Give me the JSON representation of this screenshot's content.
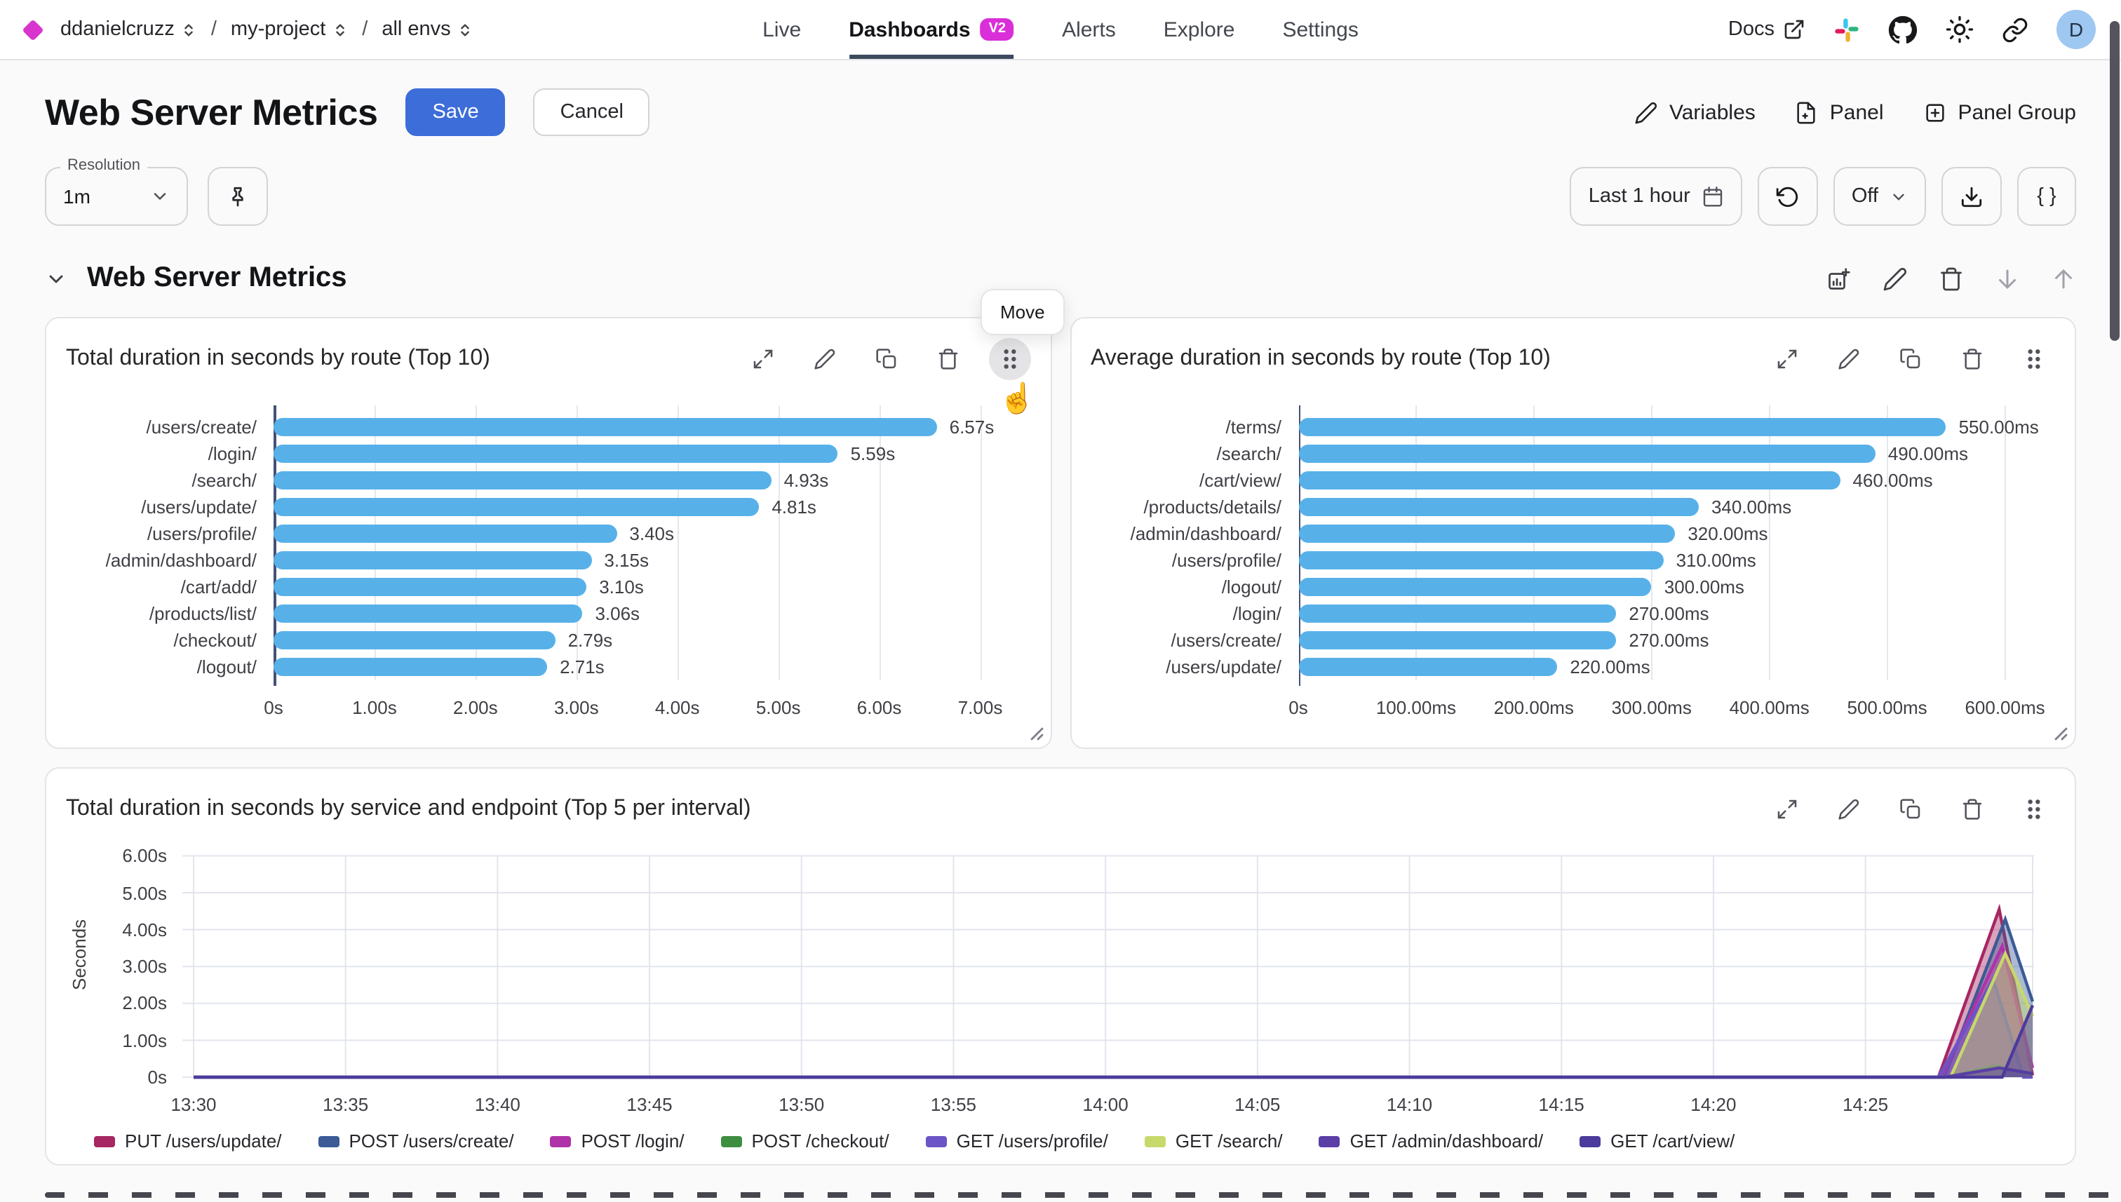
{
  "nav": {
    "breadcrumbs": [
      {
        "label": "ddanielcruzz"
      },
      {
        "label": "my-project"
      },
      {
        "label": "all envs"
      }
    ],
    "breadcrumb_separator": "/",
    "tabs": [
      {
        "label": "Live",
        "active": false
      },
      {
        "label": "Dashboards",
        "badge": "V2",
        "active": true
      },
      {
        "label": "Alerts",
        "active": false
      },
      {
        "label": "Explore",
        "active": false
      },
      {
        "label": "Settings",
        "active": false
      }
    ],
    "docs_label": "Docs",
    "avatar_initial": "D"
  },
  "header": {
    "title": "Web Server Metrics",
    "save_label": "Save",
    "cancel_label": "Cancel",
    "actions": [
      {
        "label": "Variables",
        "icon": "pencil-icon"
      },
      {
        "label": "Panel",
        "icon": "file-plus-icon"
      },
      {
        "label": "Panel Group",
        "icon": "square-plus-icon"
      }
    ]
  },
  "toolbar": {
    "resolution_label": "Resolution",
    "resolution_value": "1m",
    "pin_icon": "pin-icon",
    "time_range": "Last 1 hour",
    "refresh_icon": "refresh-icon",
    "refresh_value": "Off",
    "download_icon": "download-icon",
    "braces_label": "{ }"
  },
  "section": {
    "title": "Web Server Metrics"
  },
  "tooltip": {
    "label": "Move"
  },
  "colors": {
    "accent_magenta": "#da2ed8",
    "save_blue": "#3d6dd8",
    "bar_blue": "#57b1e8",
    "active_tab_underline": "#3d4a5e",
    "avatar_bg": "#9ec7f2"
  },
  "chart_data": [
    {
      "type": "bar",
      "orientation": "horizontal",
      "title": "Total duration in seconds by route (Top 10)",
      "categories": [
        "/users/create/",
        "/login/",
        "/search/",
        "/users/update/",
        "/users/profile/",
        "/admin/dashboard/",
        "/cart/add/",
        "/products/list/",
        "/checkout/",
        "/logout/"
      ],
      "values": [
        6.57,
        5.59,
        4.93,
        4.81,
        3.4,
        3.15,
        3.1,
        3.06,
        2.79,
        2.71
      ],
      "value_labels": [
        "6.57s",
        "5.59s",
        "4.93s",
        "4.81s",
        "3.40s",
        "3.15s",
        "3.10s",
        "3.06s",
        "2.79s",
        "2.71s"
      ],
      "x_tick_labels": [
        "0s",
        "1.00s",
        "2.00s",
        "3.00s",
        "4.00s",
        "5.00s",
        "6.00s",
        "7.00s"
      ],
      "x_tick_values": [
        0,
        1,
        2,
        3,
        4,
        5,
        6,
        7
      ],
      "x_max": 7.42,
      "bar_color": "#57b1e8"
    },
    {
      "type": "bar",
      "orientation": "horizontal",
      "title": "Average duration in seconds by route (Top 10)",
      "categories": [
        "/terms/",
        "/search/",
        "/cart/view/",
        "/products/details/",
        "/admin/dashboard/",
        "/users/profile/",
        "/logout/",
        "/login/",
        "/users/create/",
        "/users/update/"
      ],
      "values": [
        550,
        490,
        460,
        340,
        320,
        310,
        300,
        270,
        270,
        220
      ],
      "value_labels": [
        "550.00ms",
        "490.00ms",
        "460.00ms",
        "340.00ms",
        "320.00ms",
        "310.00ms",
        "300.00ms",
        "270.00ms",
        "270.00ms",
        "220.00ms"
      ],
      "x_tick_labels": [
        "0s",
        "100.00ms",
        "200.00ms",
        "300.00ms",
        "400.00ms",
        "500.00ms",
        "600.00ms"
      ],
      "x_tick_values": [
        0,
        100,
        200,
        300,
        400,
        500,
        600
      ],
      "x_max": 636,
      "bar_color": "#57b1e8"
    },
    {
      "type": "area",
      "title": "Total duration in seconds by service and endpoint (Top 5 per interval)",
      "ylabel": "Seconds",
      "y_tick_labels": [
        "0s",
        "1.00s",
        "2.00s",
        "3.00s",
        "4.00s",
        "5.00s",
        "6.00s"
      ],
      "y_tick_values": [
        0,
        1,
        2,
        3,
        4,
        5,
        6
      ],
      "y_max": 6.2,
      "x_tick_labels": [
        "13:30",
        "13:35",
        "13:40",
        "13:45",
        "13:50",
        "13:55",
        "14:00",
        "14:05",
        "14:10",
        "14:15",
        "14:20",
        "14:25"
      ],
      "x_tick_values": [
        0,
        5,
        10,
        15,
        20,
        25,
        30,
        35,
        40,
        45,
        50,
        55
      ],
      "x_max": 60.5,
      "grid": true,
      "legend_position": "bottom",
      "series": [
        {
          "name": "PUT /users/update/",
          "color": "#a62762",
          "points": [
            [
              0,
              0
            ],
            [
              57.4,
              0
            ],
            [
              59.4,
              4.55
            ],
            [
              60.5,
              0.05
            ]
          ]
        },
        {
          "name": "POST /users/create/",
          "color": "#3b5a96",
          "points": [
            [
              0,
              0
            ],
            [
              57.6,
              0
            ],
            [
              59.6,
              4.28
            ],
            [
              60.5,
              2.05
            ]
          ]
        },
        {
          "name": "POST /login/",
          "color": "#b032a8",
          "points": [
            [
              0,
              0
            ],
            [
              57.5,
              0
            ],
            [
              59.5,
              3.55
            ],
            [
              60.5,
              0.25
            ]
          ]
        },
        {
          "name": "POST /checkout/",
          "color": "#3e8e41",
          "points": [
            [
              0,
              0
            ],
            [
              57.6,
              0
            ],
            [
              59.3,
              0.3
            ],
            [
              60.5,
              0.05
            ]
          ]
        },
        {
          "name": "GET /users/profile/",
          "color": "#6a54c6",
          "points": [
            [
              0,
              0
            ],
            [
              57.4,
              0
            ],
            [
              59.2,
              2.65
            ],
            [
              60.2,
              0
            ],
            [
              60.5,
              0
            ]
          ]
        },
        {
          "name": "GET /search/",
          "color": "#c6d96a",
          "points": [
            [
              0,
              0
            ],
            [
              57.8,
              0
            ],
            [
              59.6,
              3.35
            ],
            [
              60.5,
              1.65
            ]
          ]
        },
        {
          "name": "GET /admin/dashboard/",
          "color": "#5b3ea6",
          "points": [
            [
              0,
              0
            ],
            [
              57.6,
              0
            ],
            [
              59.4,
              0.25
            ],
            [
              60.5,
              0.1
            ]
          ]
        },
        {
          "name": "GET /cart/view/",
          "color": "#4c3a9c",
          "points": [
            [
              0,
              0
            ],
            [
              59.5,
              0
            ],
            [
              60.5,
              1.95
            ]
          ]
        }
      ]
    }
  ]
}
